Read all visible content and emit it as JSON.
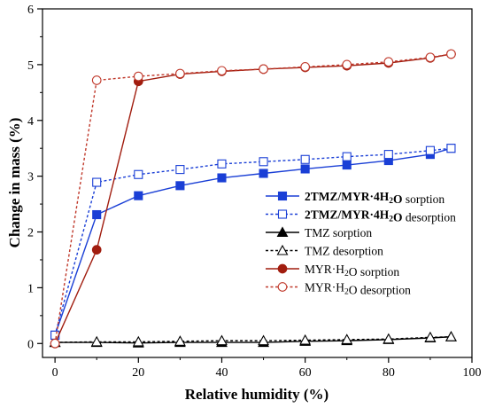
{
  "chart_data": {
    "type": "line",
    "xlabel": "Relative humidity (%)",
    "ylabel": "Change in mass (%)",
    "xlim": [
      -3,
      100
    ],
    "ylim": [
      -0.25,
      6
    ],
    "xticks": [
      0,
      20,
      40,
      60,
      80,
      100
    ],
    "yticks": [
      0,
      1,
      2,
      3,
      4,
      5,
      6
    ],
    "xtick_labels": [
      "0",
      "20",
      "40",
      "60",
      "80",
      "100"
    ],
    "ytick_labels": [
      "0",
      "1",
      "2",
      "3",
      "4",
      "5",
      "6"
    ],
    "grid": false,
    "legend_position": "center-right",
    "colors": {
      "blue": "#1a3fd6",
      "black": "#000000",
      "red": "#a11d0f",
      "red_open": "#c0392b"
    },
    "series": [
      {
        "name": "2TMZ/MYR·4H2O sorption",
        "legend_parts": [
          [
            "2TMZ/MYR·4H",
            true,
            false
          ],
          [
            "2",
            true,
            true
          ],
          [
            "O",
            true,
            false
          ],
          [
            " sorption",
            false,
            false
          ]
        ],
        "color": "#1a3fd6",
        "dash": "solid",
        "marker": "square",
        "filled": true,
        "x": [
          0,
          10,
          20,
          30,
          40,
          50,
          60,
          70,
          80,
          90,
          95
        ],
        "y": [
          0.15,
          2.31,
          2.65,
          2.83,
          2.97,
          3.05,
          3.13,
          3.2,
          3.28,
          3.39,
          3.5
        ]
      },
      {
        "name": "2TMZ/MYR·4H2O desorption",
        "legend_parts": [
          [
            "2TMZ/MYR·4H",
            true,
            false
          ],
          [
            "2",
            true,
            true
          ],
          [
            "O",
            true,
            false
          ],
          [
            " desorption",
            false,
            false
          ]
        ],
        "color": "#1a3fd6",
        "dash": "dashed",
        "marker": "square",
        "filled": false,
        "x": [
          0,
          10,
          20,
          30,
          40,
          50,
          60,
          70,
          80,
          90,
          95
        ],
        "y": [
          0.15,
          2.89,
          3.03,
          3.12,
          3.22,
          3.26,
          3.3,
          3.35,
          3.39,
          3.46,
          3.5
        ]
      },
      {
        "name": "TMZ sorption",
        "legend_parts": [
          [
            "TMZ sorption",
            false,
            false
          ]
        ],
        "color": "#000000",
        "dash": "solid",
        "marker": "triangle",
        "filled": true,
        "x": [
          0,
          10,
          20,
          30,
          40,
          50,
          60,
          70,
          80,
          90,
          95
        ],
        "y": [
          0.02,
          0.02,
          0.01,
          0.02,
          0.02,
          0.02,
          0.04,
          0.05,
          0.07,
          0.1,
          0.12
        ]
      },
      {
        "name": "TMZ desorption",
        "legend_parts": [
          [
            "TMZ desorption",
            false,
            false
          ]
        ],
        "color": "#000000",
        "dash": "dashed",
        "marker": "triangle",
        "filled": false,
        "x": [
          0,
          10,
          20,
          30,
          40,
          50,
          60,
          70,
          80,
          90,
          95
        ],
        "y": [
          0.02,
          0.03,
          0.03,
          0.04,
          0.05,
          0.05,
          0.06,
          0.07,
          0.08,
          0.11,
          0.12
        ]
      },
      {
        "name": "MYR·H2O sorption",
        "legend_parts": [
          [
            "MYR·H",
            false,
            false
          ],
          [
            "2",
            false,
            true
          ],
          [
            "O sorption",
            false,
            false
          ]
        ],
        "color": "#a11d0f",
        "dash": "solid",
        "marker": "circle",
        "filled": true,
        "x": [
          0,
          10,
          20,
          30,
          40,
          50,
          60,
          70,
          80,
          90,
          95
        ],
        "y": [
          0.0,
          1.68,
          4.7,
          4.83,
          4.88,
          4.92,
          4.95,
          4.98,
          5.03,
          5.12,
          5.19
        ]
      },
      {
        "name": "MYR·H2O desorption",
        "legend_parts": [
          [
            "MYR·H",
            false,
            false
          ],
          [
            "2",
            false,
            true
          ],
          [
            "O desorption",
            false,
            false
          ]
        ],
        "color": "#c0392b",
        "dash": "dashed",
        "marker": "circle",
        "filled": false,
        "x": [
          0,
          10,
          20,
          30,
          40,
          50,
          60,
          70,
          80,
          90,
          95
        ],
        "y": [
          0.0,
          4.72,
          4.79,
          4.84,
          4.89,
          4.92,
          4.96,
          5.0,
          5.05,
          5.13,
          5.19
        ]
      }
    ]
  }
}
